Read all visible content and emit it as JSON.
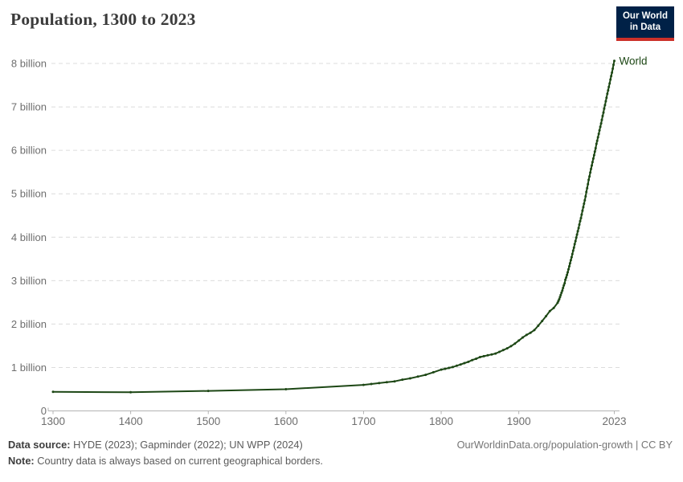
{
  "header": {
    "title": "Population, 1300 to 2023"
  },
  "logo": {
    "line1": "Our World",
    "line2": "in Data",
    "bg_color": "#002147",
    "accent_color": "#cc3029"
  },
  "footer": {
    "data_source_label": "Data source:",
    "data_source_text": "HYDE (2023); Gapminder (2022); UN WPP (2024)",
    "note_label": "Note:",
    "note_text": "Country data is always based on current geographical borders.",
    "link": "OurWorldinData.org/population-growth | CC BY"
  },
  "chart_data": {
    "type": "line",
    "title": "Population, 1300 to 2023",
    "xlabel": "",
    "ylabel": "",
    "xlim": [
      1300,
      2023
    ],
    "ylim": [
      0,
      8
    ],
    "grid": "horizontal-dashed",
    "legend": "end-of-line-label",
    "x_ticks": [
      1300,
      1400,
      1500,
      1600,
      1700,
      1800,
      1900,
      2023
    ],
    "y_ticks": [
      {
        "value": 0,
        "label": "0"
      },
      {
        "value": 1,
        "label": "1 billion"
      },
      {
        "value": 2,
        "label": "2 billion"
      },
      {
        "value": 3,
        "label": "3 billion"
      },
      {
        "value": 4,
        "label": "4 billion"
      },
      {
        "value": 5,
        "label": "5 billion"
      },
      {
        "value": 6,
        "label": "6 billion"
      },
      {
        "value": 7,
        "label": "7 billion"
      },
      {
        "value": 8,
        "label": "8 billion"
      }
    ],
    "series": [
      {
        "name": "World",
        "color": "#1d4715",
        "unit": "billion people",
        "points": [
          [
            1300,
            0.44
          ],
          [
            1400,
            0.43
          ],
          [
            1500,
            0.46
          ],
          [
            1600,
            0.5
          ],
          [
            1700,
            0.6
          ],
          [
            1710,
            0.62
          ],
          [
            1720,
            0.64
          ],
          [
            1730,
            0.66
          ],
          [
            1740,
            0.68
          ],
          [
            1750,
            0.72
          ],
          [
            1760,
            0.75
          ],
          [
            1770,
            0.79
          ],
          [
            1780,
            0.83
          ],
          [
            1790,
            0.89
          ],
          [
            1800,
            0.95
          ],
          [
            1805,
            0.97
          ],
          [
            1810,
            0.99
          ],
          [
            1815,
            1.01
          ],
          [
            1820,
            1.04
          ],
          [
            1825,
            1.07
          ],
          [
            1830,
            1.1
          ],
          [
            1835,
            1.13
          ],
          [
            1840,
            1.17
          ],
          [
            1845,
            1.2
          ],
          [
            1850,
            1.24
          ],
          [
            1855,
            1.26
          ],
          [
            1860,
            1.28
          ],
          [
            1865,
            1.3
          ],
          [
            1870,
            1.32
          ],
          [
            1875,
            1.36
          ],
          [
            1880,
            1.4
          ],
          [
            1885,
            1.44
          ],
          [
            1890,
            1.49
          ],
          [
            1895,
            1.55
          ],
          [
            1900,
            1.62
          ],
          [
            1905,
            1.69
          ],
          [
            1910,
            1.75
          ],
          [
            1915,
            1.8
          ],
          [
            1920,
            1.86
          ],
          [
            1925,
            1.96
          ],
          [
            1930,
            2.07
          ],
          [
            1935,
            2.18
          ],
          [
            1940,
            2.3
          ],
          [
            1945,
            2.37
          ],
          [
            1950,
            2.49
          ],
          [
            1951,
            2.53
          ],
          [
            1952,
            2.57
          ],
          [
            1953,
            2.62
          ],
          [
            1954,
            2.67
          ],
          [
            1955,
            2.72
          ],
          [
            1956,
            2.77
          ],
          [
            1957,
            2.83
          ],
          [
            1958,
            2.89
          ],
          [
            1959,
            2.94
          ],
          [
            1960,
            3.02
          ],
          [
            1961,
            3.07
          ],
          [
            1962,
            3.13
          ],
          [
            1963,
            3.19
          ],
          [
            1964,
            3.26
          ],
          [
            1965,
            3.33
          ],
          [
            1966,
            3.4
          ],
          [
            1967,
            3.47
          ],
          [
            1968,
            3.54
          ],
          [
            1969,
            3.61
          ],
          [
            1970,
            3.69
          ],
          [
            1971,
            3.76
          ],
          [
            1972,
            3.84
          ],
          [
            1973,
            3.91
          ],
          [
            1974,
            3.99
          ],
          [
            1975,
            4.06
          ],
          [
            1976,
            4.14
          ],
          [
            1977,
            4.21
          ],
          [
            1978,
            4.29
          ],
          [
            1979,
            4.37
          ],
          [
            1980,
            4.44
          ],
          [
            1981,
            4.52
          ],
          [
            1982,
            4.61
          ],
          [
            1983,
            4.69
          ],
          [
            1984,
            4.77
          ],
          [
            1985,
            4.85
          ],
          [
            1986,
            4.94
          ],
          [
            1987,
            5.04
          ],
          [
            1988,
            5.13
          ],
          [
            1989,
            5.22
          ],
          [
            1990,
            5.32
          ],
          [
            1991,
            5.4
          ],
          [
            1992,
            5.49
          ],
          [
            1993,
            5.57
          ],
          [
            1994,
            5.65
          ],
          [
            1995,
            5.73
          ],
          [
            1996,
            5.81
          ],
          [
            1997,
            5.89
          ],
          [
            1998,
            5.97
          ],
          [
            1999,
            6.05
          ],
          [
            2000,
            6.15
          ],
          [
            2001,
            6.22
          ],
          [
            2002,
            6.3
          ],
          [
            2003,
            6.38
          ],
          [
            2004,
            6.46
          ],
          [
            2005,
            6.54
          ],
          [
            2006,
            6.62
          ],
          [
            2007,
            6.7
          ],
          [
            2008,
            6.79
          ],
          [
            2009,
            6.87
          ],
          [
            2010,
            6.96
          ],
          [
            2011,
            7.04
          ],
          [
            2012,
            7.13
          ],
          [
            2013,
            7.21
          ],
          [
            2014,
            7.3
          ],
          [
            2015,
            7.38
          ],
          [
            2016,
            7.46
          ],
          [
            2017,
            7.54
          ],
          [
            2018,
            7.63
          ],
          [
            2019,
            7.71
          ],
          [
            2020,
            7.79
          ],
          [
            2021,
            7.88
          ],
          [
            2022,
            7.97
          ],
          [
            2023,
            8.06
          ]
        ]
      }
    ]
  }
}
